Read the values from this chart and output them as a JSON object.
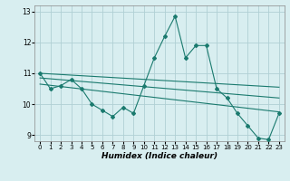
{
  "main_x": [
    0,
    1,
    2,
    3,
    4,
    5,
    6,
    7,
    8,
    9,
    10,
    11,
    12,
    13,
    14,
    15,
    16,
    17,
    18,
    19,
    20,
    21,
    22,
    23
  ],
  "main_y": [
    11.0,
    10.5,
    10.6,
    10.8,
    10.5,
    10.0,
    9.8,
    9.6,
    9.9,
    9.7,
    10.6,
    11.5,
    12.2,
    12.85,
    11.5,
    11.9,
    11.9,
    10.5,
    10.2,
    9.7,
    9.3,
    8.9,
    8.85,
    9.7
  ],
  "line_color": "#1a7a6e",
  "bg_color": "#d8eef0",
  "grid_color": "#b0d0d4",
  "xlabel": "Humidex (Indice chaleur)",
  "ylim": [
    8.8,
    13.2
  ],
  "xlim": [
    -0.5,
    23.5
  ],
  "yticks": [
    9,
    10,
    11,
    12,
    13
  ],
  "xticks": [
    0,
    1,
    2,
    3,
    4,
    5,
    6,
    7,
    8,
    9,
    10,
    11,
    12,
    13,
    14,
    15,
    16,
    17,
    18,
    19,
    20,
    21,
    22,
    23
  ],
  "regression_lines": [
    {
      "x0": 0,
      "y0": 11.0,
      "x1": 23,
      "y1": 10.55
    },
    {
      "x0": 0,
      "y0": 10.85,
      "x1": 23,
      "y1": 10.2
    },
    {
      "x0": 0,
      "y0": 10.65,
      "x1": 23,
      "y1": 9.75
    }
  ]
}
